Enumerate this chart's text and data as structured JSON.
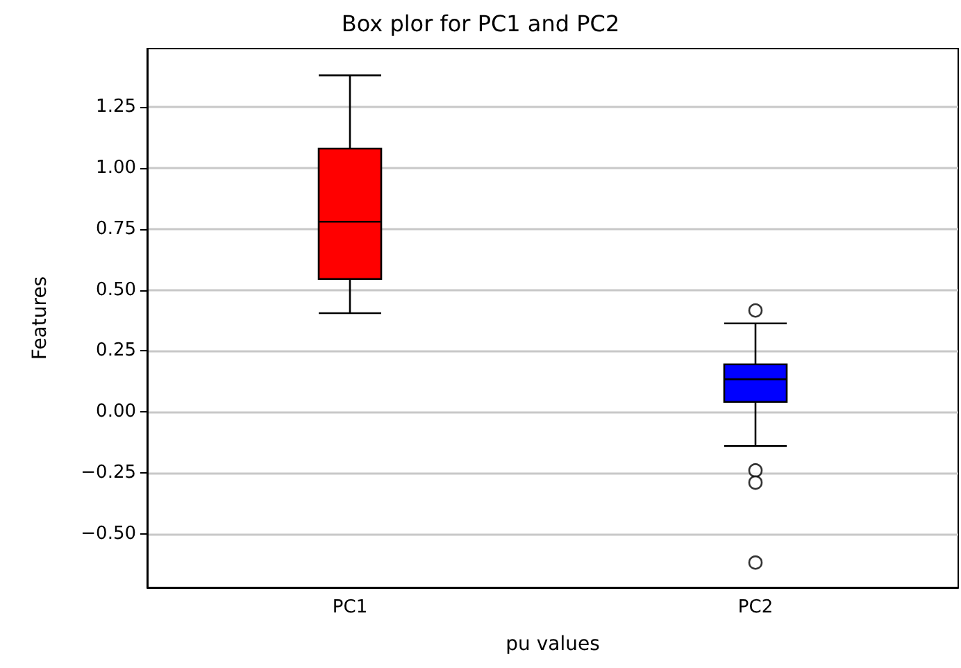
{
  "chart_data": {
    "type": "box",
    "title": "Box plor for PC1 and PC2",
    "xlabel": "pu values",
    "ylabel": "Features",
    "categories": [
      "PC1",
      "PC2"
    ],
    "boxes": [
      {
        "low": 0.405,
        "q1": 0.545,
        "median": 0.78,
        "q3": 1.08,
        "high": 1.38
      },
      {
        "low": -0.14,
        "q1": 0.041,
        "median": 0.134,
        "q3": 0.195,
        "high": 0.363,
        "outliers": [
          0.416,
          -0.24,
          -0.29,
          -0.618
        ]
      }
    ],
    "colors": [
      "#ff0000",
      "#0000ff"
    ],
    "ylim": [
      -0.72,
      1.49
    ],
    "yticks": [
      {
        "value": -0.5,
        "label": "−0.50"
      },
      {
        "value": -0.25,
        "label": "−0.25"
      },
      {
        "value": 0,
        "label": "0.00"
      },
      {
        "value": 0.25,
        "label": "0.25"
      },
      {
        "value": 0.5,
        "label": "0.50"
      },
      {
        "value": 0.75,
        "label": "0.75"
      },
      {
        "value": 1,
        "label": "1.00"
      },
      {
        "value": 1.25,
        "label": "1.25"
      }
    ],
    "grid": "y"
  }
}
